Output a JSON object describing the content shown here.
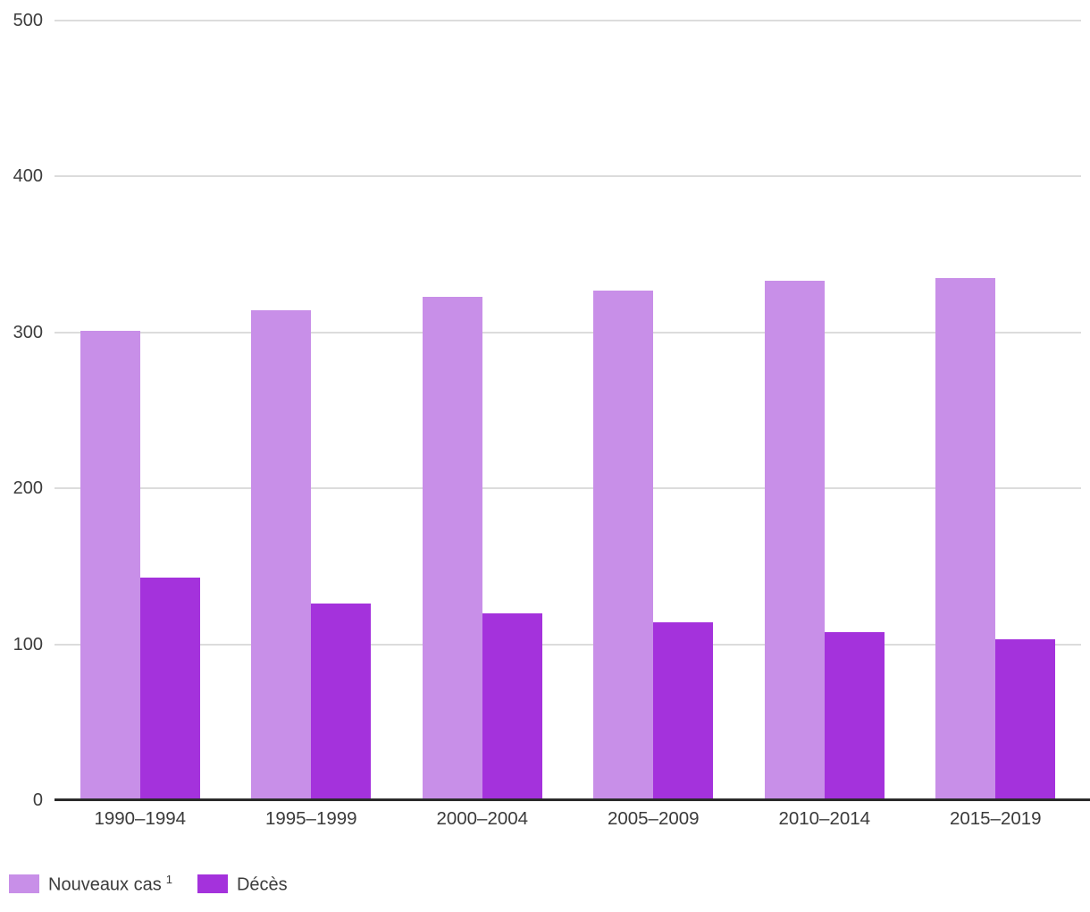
{
  "chart_data": {
    "type": "bar",
    "title": "",
    "xlabel": "",
    "ylabel": "",
    "categories": [
      "1990–1994",
      "1995–1999",
      "2000–2004",
      "2005–2009",
      "2010–2014",
      "2015–2019"
    ],
    "series": [
      {
        "name": "Nouveaux cas",
        "superscript": "1",
        "color": "#c88fe8",
        "values": [
          301,
          314,
          323,
          327,
          333,
          335
        ]
      },
      {
        "name": "Décès",
        "superscript": "",
        "color": "#a432dc",
        "values": [
          143,
          126,
          120,
          114,
          108,
          103
        ]
      }
    ],
    "ylim": [
      0,
      500
    ],
    "yticks": [
      0,
      100,
      200,
      300,
      400,
      500
    ],
    "grid": true,
    "legend_position": "bottom-left",
    "gridline_color": "#dcdcdc",
    "axis_color": "#2b2b2b",
    "text_color": "#3d3d3d"
  }
}
